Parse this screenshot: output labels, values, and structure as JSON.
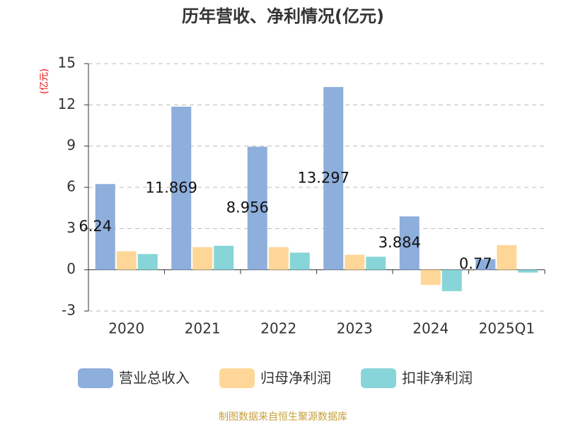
{
  "chart_data": {
    "type": "bar",
    "title": "历年营收、净利情况(亿元)",
    "y_label": "(亿元)",
    "source": "制图数据来自恒生聚源数据库",
    "categories": [
      "2020",
      "2021",
      "2022",
      "2023",
      "2024",
      "2025Q1"
    ],
    "series": [
      {
        "name": "营业总收入",
        "color": "#8eaedb",
        "values": [
          6.24,
          11.869,
          8.956,
          13.297,
          3.884,
          0.77
        ],
        "show_labels": true
      },
      {
        "name": "归母净利润",
        "color": "#fed798",
        "values": [
          1.35,
          1.65,
          1.65,
          1.1,
          -1.1,
          1.8
        ],
        "show_labels": false
      },
      {
        "name": "扣非净利润",
        "color": "#87d5d8",
        "values": [
          1.15,
          1.75,
          1.25,
          0.95,
          -1.55,
          -0.2
        ],
        "show_labels": false
      }
    ],
    "ylim": [
      -3,
      15
    ],
    "yticks": [
      -3,
      0,
      3,
      6,
      9,
      12,
      15
    ],
    "grid": true
  }
}
